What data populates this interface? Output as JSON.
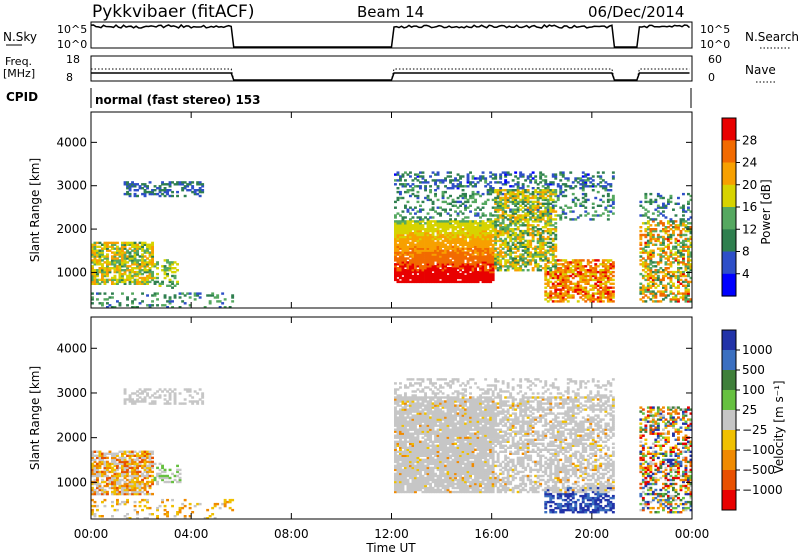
{
  "header": {
    "radar": "Pykkvibaer (fitACF)",
    "beam": "Beam 14",
    "date": "06/Dec/2014"
  },
  "top_panels": {
    "nsky_label": "N.Sky",
    "nsky_ticks": [
      "10^5",
      "10^0"
    ],
    "nsearch_label": "N.Search",
    "nsearch_ticks": [
      "10^5",
      "10^0"
    ],
    "freq_label_line1": "Freq.",
    "freq_label_line2": "[MHz]",
    "freq_ticks": [
      "18",
      "8"
    ],
    "nave_label": "Nave",
    "nave_ticks": [
      "60",
      "0"
    ],
    "cpid_label": "CPID",
    "cpid_text": "normal (fast stereo) 153"
  },
  "colors": {
    "power_scale": [
      "#0000ff",
      "#2e4fc8",
      "#2f7f4f",
      "#55a860",
      "#d7d300",
      "#f7a000",
      "#f26a00",
      "#e80000"
    ],
    "velocity_scale": [
      "#2233a8",
      "#3a6fc0",
      "#3f7f3a",
      "#66c040",
      "#c6c6c6",
      "#f0c000",
      "#f08a00",
      "#e85000",
      "#e80000"
    ],
    "gray": "#c8c8c8"
  },
  "chart_data": [
    {
      "type": "heatmap",
      "name": "power",
      "xlabel": "Time UT",
      "ylabel": "Slant Range [km]",
      "xlim": [
        0,
        24
      ],
      "ylim": [
        180,
        4700
      ],
      "x_ticks": [
        "00:00",
        "04:00",
        "08:00",
        "12:00",
        "16:00",
        "20:00",
        "00:00"
      ],
      "y_ticks": [
        "1000",
        "2000",
        "3000",
        "4000"
      ],
      "colorbar_label": "Power [dB]",
      "colorbar_ticks": [
        "4",
        "8",
        "12",
        "16",
        "20",
        "24",
        "28"
      ],
      "data_gaps_hours": [
        [
          5.6,
          12.0
        ],
        [
          20.9,
          21.9
        ]
      ]
    },
    {
      "type": "heatmap",
      "name": "velocity",
      "xlabel": "Time UT",
      "ylabel": "Slant Range [km]",
      "xlim": [
        0,
        24
      ],
      "ylim": [
        180,
        4700
      ],
      "x_ticks": [
        "00:00",
        "04:00",
        "08:00",
        "12:00",
        "16:00",
        "20:00",
        "00:00"
      ],
      "y_ticks": [
        "1000",
        "2000",
        "3000",
        "4000"
      ],
      "colorbar_label": "Velocity [m s⁻¹]",
      "colorbar_ticks": [
        "1000",
        "500",
        "100",
        "25",
        "−25",
        "−100",
        "−500",
        "−1000"
      ],
      "data_gaps_hours": [
        [
          5.6,
          12.0
        ],
        [
          20.9,
          21.9
        ]
      ]
    }
  ]
}
